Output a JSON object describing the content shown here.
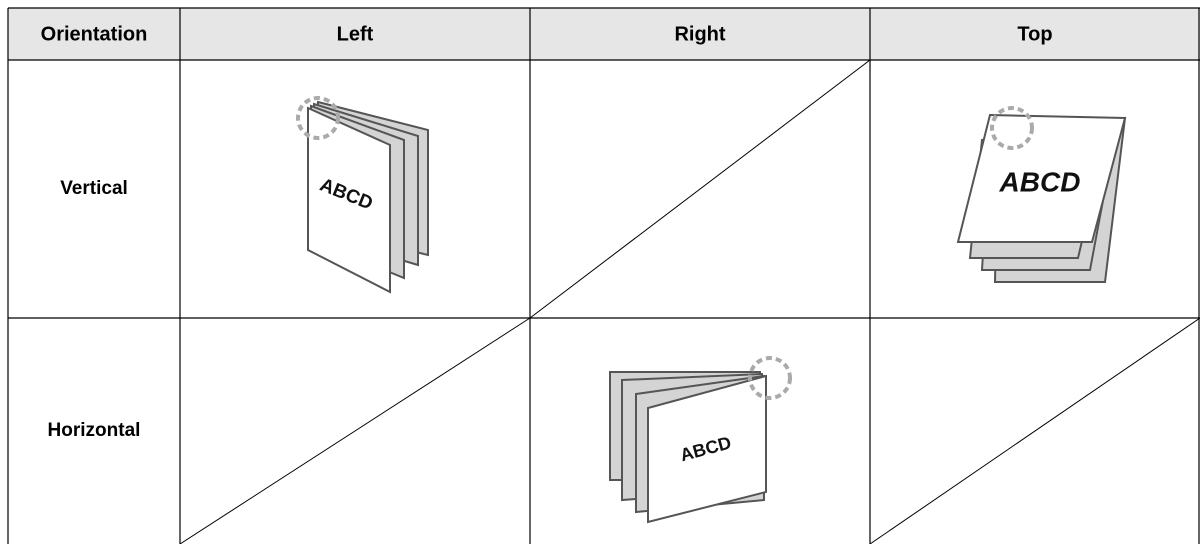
{
  "table": {
    "header": [
      "Orientation",
      "Left",
      "Right",
      "Top"
    ],
    "rows": [
      {
        "label": "Vertical"
      },
      {
        "label": "Horizontal"
      }
    ]
  },
  "illustrations": [
    {
      "label": "ABCD"
    },
    {
      "label": "ABCD"
    },
    {
      "label": "ABCD"
    }
  ]
}
